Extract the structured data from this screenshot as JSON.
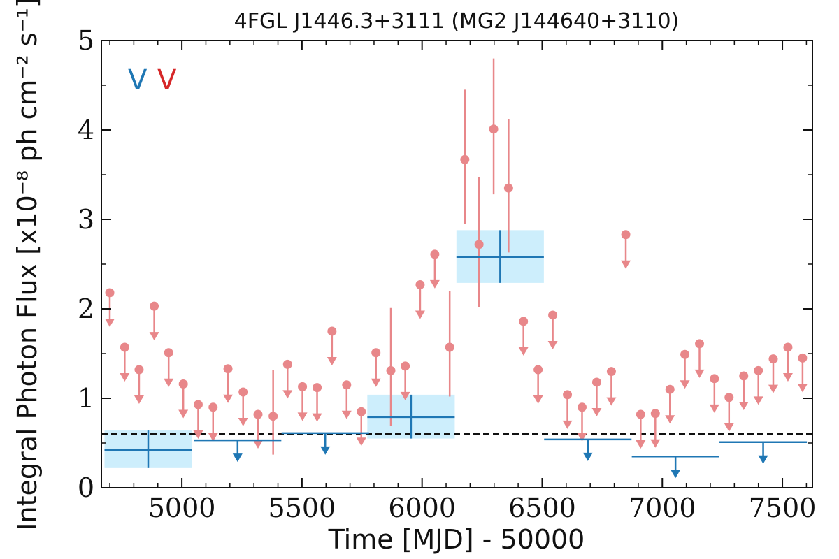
{
  "chart_data": {
    "type": "scatter",
    "title": "4FGL J1446.3+3111 (MG2 J144640+3110)",
    "xlabel": "Time [MJD] - 50000",
    "ylabel": "Integral Photon Flux [x10⁻⁸ ph cm⁻² s⁻¹]",
    "xlim": [
      4665,
      7625
    ],
    "ylim": [
      0,
      5
    ],
    "x_ticks": [
      5000,
      5500,
      6000,
      6500,
      7000,
      7500
    ],
    "y_ticks": [
      0,
      1,
      2,
      3,
      4,
      5
    ],
    "x_tick_labels": [
      "5000",
      "5500",
      "6000",
      "6500",
      "7000",
      "7500"
    ],
    "y_tick_labels": [
      "0",
      "1",
      "2",
      "3",
      "4",
      "5"
    ],
    "baseline": 0.6,
    "legend": {
      "placement": "top-left",
      "entries": [
        "V",
        "V"
      ],
      "colors": [
        "#1f77b4",
        "#d62728"
      ]
    },
    "colors": {
      "blue": "#1f77b4",
      "red": "#e8878a",
      "band": "#cdeefc",
      "baseline": "#111111"
    },
    "series": [
      {
        "points": [
          {
            "x": 4860,
            "y": 0.42,
            "xerr": 182,
            "band": [
              0.22,
              0.64
            ]
          },
          {
            "x": 5954,
            "y": 0.79,
            "xerr": 182,
            "band": [
              0.55,
              1.04
            ]
          },
          {
            "x": 6325,
            "y": 2.58,
            "xerr": 182,
            "band": [
              2.29,
              2.88
            ]
          }
        ],
        "upper_limits": [
          {
            "x": 5232,
            "y": 0.53,
            "xerr": 182
          },
          {
            "x": 5597,
            "y": 0.61,
            "xerr": 182
          },
          {
            "x": 6690,
            "y": 0.54,
            "xerr": 182
          },
          {
            "x": 7055,
            "y": 0.35,
            "xerr": 182
          },
          {
            "x": 7420,
            "y": 0.51,
            "xerr": 182
          }
        ]
      },
      {
        "points": [
          {
            "x": 5380,
            "y": 0.8,
            "yerr": [
              0.43,
              0.52
            ]
          },
          {
            "x": 5870,
            "y": 1.31,
            "yerr": [
              0.62,
              0.7
            ]
          },
          {
            "x": 6115,
            "y": 1.57,
            "yerr": [
              0.55,
              0.63
            ]
          },
          {
            "x": 6178,
            "y": 3.67,
            "yerr": [
              0.72,
              0.78
            ]
          },
          {
            "x": 6237,
            "y": 2.72,
            "yerr": [
              0.7,
              0.75
            ]
          },
          {
            "x": 6298,
            "y": 4.01,
            "yerr": [
              0.73,
              0.79
            ]
          },
          {
            "x": 6360,
            "y": 3.35,
            "yerr": [
              0.72,
              0.77
            ]
          }
        ],
        "upper_limits": [
          {
            "x": 4700,
            "y": 2.18
          },
          {
            "x": 4762,
            "y": 1.57
          },
          {
            "x": 4822,
            "y": 1.32
          },
          {
            "x": 4885,
            "y": 2.03
          },
          {
            "x": 4945,
            "y": 1.51
          },
          {
            "x": 5006,
            "y": 1.16
          },
          {
            "x": 5068,
            "y": 0.93
          },
          {
            "x": 5130,
            "y": 0.9
          },
          {
            "x": 5192,
            "y": 1.33
          },
          {
            "x": 5255,
            "y": 1.07
          },
          {
            "x": 5317,
            "y": 0.82
          },
          {
            "x": 5440,
            "y": 1.38
          },
          {
            "x": 5502,
            "y": 1.13
          },
          {
            "x": 5563,
            "y": 1.12
          },
          {
            "x": 5625,
            "y": 1.75
          },
          {
            "x": 5686,
            "y": 1.15
          },
          {
            "x": 5747,
            "y": 0.85
          },
          {
            "x": 5808,
            "y": 1.51
          },
          {
            "x": 5930,
            "y": 1.36
          },
          {
            "x": 5992,
            "y": 2.27
          },
          {
            "x": 6053,
            "y": 2.61
          },
          {
            "x": 6422,
            "y": 1.86
          },
          {
            "x": 6483,
            "y": 1.32
          },
          {
            "x": 6544,
            "y": 1.93
          },
          {
            "x": 6605,
            "y": 1.04
          },
          {
            "x": 6666,
            "y": 0.9
          },
          {
            "x": 6727,
            "y": 1.18
          },
          {
            "x": 6788,
            "y": 1.3
          },
          {
            "x": 6848,
            "y": 2.83
          },
          {
            "x": 6910,
            "y": 0.82
          },
          {
            "x": 6971,
            "y": 0.83
          },
          {
            "x": 7032,
            "y": 1.1
          },
          {
            "x": 7094,
            "y": 1.49
          },
          {
            "x": 7155,
            "y": 1.61
          },
          {
            "x": 7217,
            "y": 1.22
          },
          {
            "x": 7278,
            "y": 1.01
          },
          {
            "x": 7339,
            "y": 1.25
          },
          {
            "x": 7400,
            "y": 1.31
          },
          {
            "x": 7462,
            "y": 1.44
          },
          {
            "x": 7523,
            "y": 1.57
          },
          {
            "x": 7584,
            "y": 1.45
          }
        ]
      }
    ]
  }
}
